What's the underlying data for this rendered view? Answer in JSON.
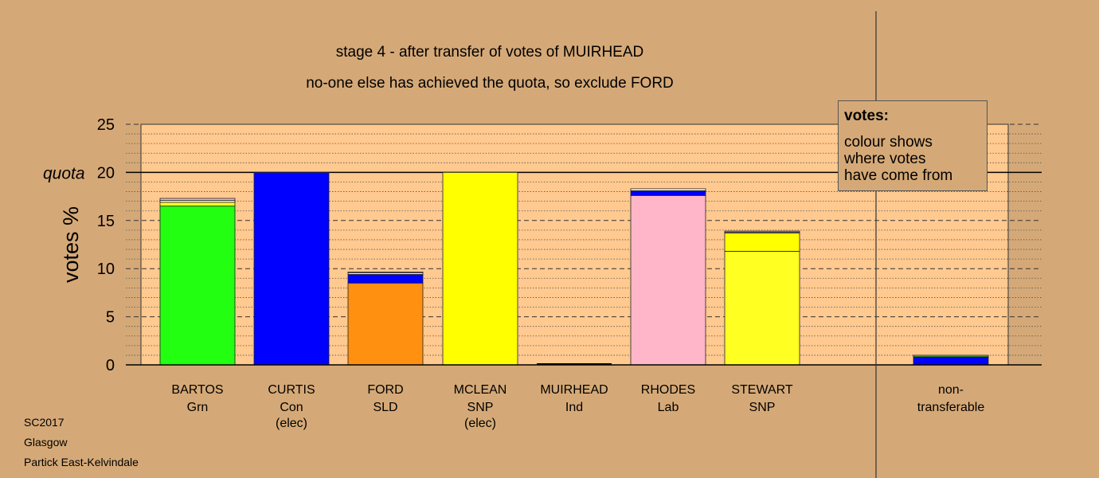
{
  "titles": {
    "line1": "stage 4 - after transfer of votes of MUIRHEAD",
    "line2": "no-one else has achieved the quota, so exclude FORD"
  },
  "legend": {
    "heading": "votes:",
    "lines": [
      "colour shows",
      "where votes",
      "have come from"
    ]
  },
  "source": [
    "SC2017",
    "Glasgow",
    "Partick East-Kelvindale"
  ],
  "chart_data": {
    "type": "bar",
    "stacked": true,
    "ylabel": "votes %",
    "quota_label": "quota",
    "quota": 20,
    "ylim": [
      0,
      25
    ],
    "yticks": [
      0,
      5,
      10,
      15,
      20,
      25
    ],
    "grid": "dashed every 5, dotted every 1",
    "legend_position": "top-right",
    "categories": [
      {
        "name": "BARTOS",
        "party": "Grn",
        "note": ""
      },
      {
        "name": "CURTIS",
        "party": "Con",
        "note": "(elec)"
      },
      {
        "name": "FORD",
        "party": "SLD",
        "note": ""
      },
      {
        "name": "MCLEAN",
        "party": "SNP",
        "note": "(elec)"
      },
      {
        "name": "MUIRHEAD",
        "party": "Ind",
        "note": ""
      },
      {
        "name": "RHODES",
        "party": "Lab",
        "note": ""
      },
      {
        "name": "STEWART",
        "party": "SNP",
        "note": ""
      },
      {
        "name": "non-",
        "party": "transferable",
        "note": ""
      }
    ],
    "segments": [
      [
        {
          "value": 16.5,
          "color": "#22ff11"
        },
        {
          "value": 0.4,
          "color": "#ffff22"
        },
        {
          "value": 0.2,
          "color": "#ffffff"
        },
        {
          "value": 0.2,
          "color": "#ffb6c8"
        }
      ],
      [
        {
          "value": 20.0,
          "color": "#0000ff"
        }
      ],
      [
        {
          "value": 8.5,
          "color": "#ff9010"
        },
        {
          "value": 0.9,
          "color": "#0000ff"
        },
        {
          "value": 0.15,
          "color": "#ffffff"
        },
        {
          "value": 0.1,
          "color": "#ffb6c8"
        }
      ],
      [
        {
          "value": 20.0,
          "color": "#ffff00"
        }
      ],
      [],
      [
        {
          "value": 17.6,
          "color": "#ffb6c8"
        },
        {
          "value": 0.5,
          "color": "#0000ff"
        },
        {
          "value": 0.2,
          "color": "#ffffff"
        }
      ],
      [
        {
          "value": 11.8,
          "color": "#ffff22"
        },
        {
          "value": 1.9,
          "color": "#ffff00"
        },
        {
          "value": 0.1,
          "color": "#ffffff"
        },
        {
          "value": 0.1,
          "color": "#ffb6c8"
        }
      ],
      [
        {
          "value": 0.8,
          "color": "#0000ff"
        },
        {
          "value": 0.1,
          "color": "#22ff11"
        },
        {
          "value": 0.1,
          "color": "#ffffff"
        }
      ]
    ]
  },
  "colors": {
    "background": "#d5a977",
    "plot_area": "#ffc98f"
  }
}
